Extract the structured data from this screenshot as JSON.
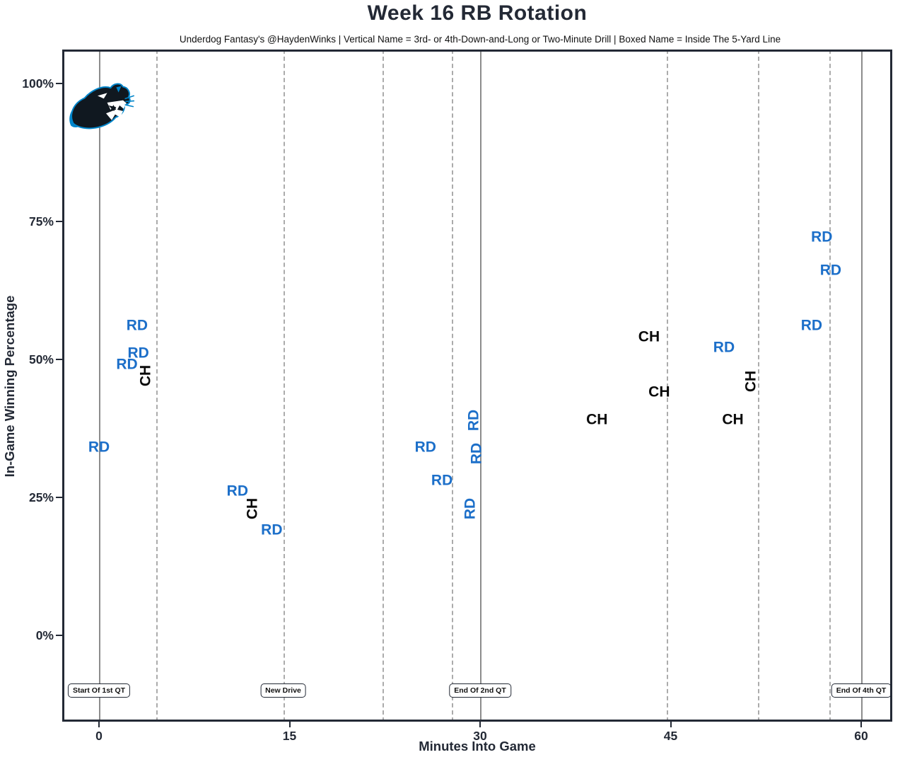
{
  "header": {
    "title": "Week 16 RB Rotation",
    "subtitle": "Underdog Fantasy's @HaydenWinks | Vertical Name = 3rd- or 4th-Down-and-Long or Two-Minute Drill | Boxed Name = Inside The 5-Yard Line"
  },
  "colors": {
    "rd_blue": "#1C6FC9",
    "ch_black": "#0a0a0a",
    "panthers_blue": "#0085CA",
    "panthers_black": "#101820",
    "axis_dark": "#232935",
    "grid_solid": "#8c8c8c",
    "grid_dashed": "#ababab"
  },
  "logo": {
    "name": "carolina-panthers-logo",
    "x_min": 0.1,
    "win_pct": 95
  },
  "chart_data": {
    "type": "scatter",
    "title": "Week 16 RB Rotation",
    "xlabel": "Minutes Into Game",
    "ylabel": "In-Game Winning Percentage",
    "xlim": [
      -2.9,
      62.4
    ],
    "ylim": [
      -15.6,
      106.2
    ],
    "grid": "vertical-only",
    "x_ticks": [
      0,
      15,
      30,
      45,
      60
    ],
    "y_ticks": [
      0,
      25,
      50,
      75,
      100
    ],
    "y_tick_labels": [
      "0%",
      "25%",
      "50%",
      "75%",
      "100%"
    ],
    "solid_vlines_min": [
      0,
      30,
      60
    ],
    "dashed_vlines_min": [
      4.5,
      14.5,
      22.3,
      27.8,
      44.7,
      51.9,
      57.5
    ],
    "annotations": [
      {
        "label": "Start Of 1st QT",
        "x_min": 0
      },
      {
        "label": "New Drive",
        "x_min": 14.5
      },
      {
        "label": "End Of 2nd QT",
        "x_min": 30
      },
      {
        "label": "End Of 4th QT",
        "x_min": 60
      }
    ],
    "series_legend": [
      {
        "code": "RD",
        "color": "#1C6FC9"
      },
      {
        "code": "CH",
        "color": "#0a0a0a"
      }
    ],
    "points": [
      {
        "player": "RD",
        "min": 0.0,
        "win_pct": 34,
        "orient": "h",
        "boxed": false
      },
      {
        "player": "RD",
        "min": 2.2,
        "win_pct": 49,
        "orient": "h",
        "boxed": false
      },
      {
        "player": "RD",
        "min": 3.0,
        "win_pct": 56,
        "orient": "h",
        "boxed": false
      },
      {
        "player": "RD",
        "min": 3.1,
        "win_pct": 51,
        "orient": "h",
        "boxed": false
      },
      {
        "player": "CH",
        "min": 3.7,
        "win_pct": 47,
        "orient": "v",
        "boxed": false
      },
      {
        "player": "RD",
        "min": 10.9,
        "win_pct": 26,
        "orient": "h",
        "boxed": false
      },
      {
        "player": "CH",
        "min": 12.1,
        "win_pct": 23,
        "orient": "v",
        "boxed": false
      },
      {
        "player": "RD",
        "min": 13.6,
        "win_pct": 19,
        "orient": "h",
        "boxed": false
      },
      {
        "player": "RD",
        "min": 25.7,
        "win_pct": 34,
        "orient": "h",
        "boxed": false
      },
      {
        "player": "RD",
        "min": 27.0,
        "win_pct": 28,
        "orient": "h",
        "boxed": false
      },
      {
        "player": "RD",
        "min": 29.2,
        "win_pct": 23,
        "orient": "v",
        "boxed": false
      },
      {
        "player": "RD",
        "min": 29.5,
        "win_pct": 39,
        "orient": "v",
        "boxed": false
      },
      {
        "player": "RD",
        "min": 29.7,
        "win_pct": 33,
        "orient": "v",
        "boxed": false
      },
      {
        "player": "CH",
        "min": 39.2,
        "win_pct": 39,
        "orient": "h",
        "boxed": false
      },
      {
        "player": "CH",
        "min": 43.3,
        "win_pct": 54,
        "orient": "h",
        "boxed": false
      },
      {
        "player": "CH",
        "min": 44.1,
        "win_pct": 44,
        "orient": "h",
        "boxed": false
      },
      {
        "player": "RD",
        "min": 49.2,
        "win_pct": 52,
        "orient": "h",
        "boxed": false
      },
      {
        "player": "CH",
        "min": 49.9,
        "win_pct": 39,
        "orient": "h",
        "boxed": false
      },
      {
        "player": "CH",
        "min": 51.3,
        "win_pct": 46,
        "orient": "v",
        "boxed": false
      },
      {
        "player": "RD",
        "min": 56.1,
        "win_pct": 56,
        "orient": "h",
        "boxed": false
      },
      {
        "player": "RD",
        "min": 56.9,
        "win_pct": 72,
        "orient": "h",
        "boxed": false
      },
      {
        "player": "RD",
        "min": 57.6,
        "win_pct": 66,
        "orient": "h",
        "boxed": false
      }
    ]
  }
}
